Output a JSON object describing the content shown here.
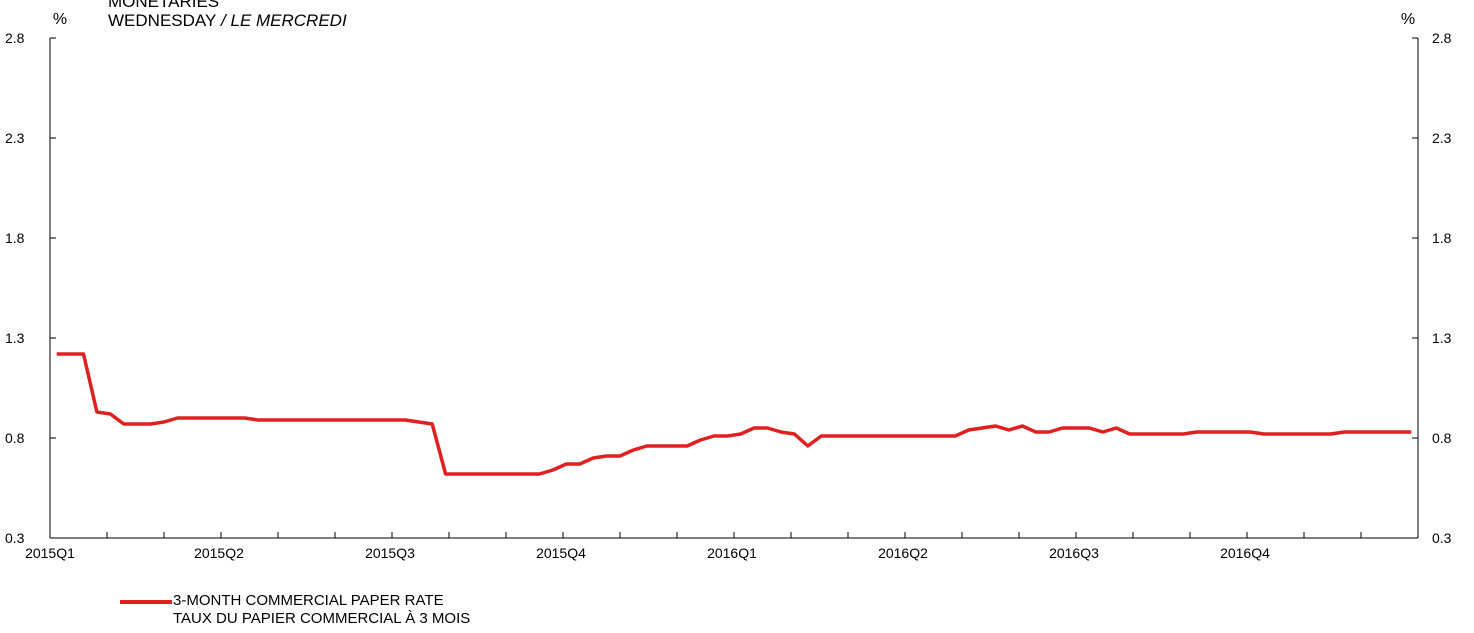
{
  "header": {
    "line_top": "MONETARIES",
    "title_en": "WEDNESDAY",
    "title_sep": " / ",
    "title_fr": "LE MERCREDI"
  },
  "chart_data": {
    "type": "line",
    "ylim": [
      0.3,
      2.8
    ],
    "yticks": [
      "0.3",
      "0.8",
      "1.3",
      "1.8",
      "2.3",
      "2.8"
    ],
    "y_unit_left": "%",
    "y_unit_right": "%",
    "x_tick_labels": [
      "2015Q1",
      "2015Q2",
      "2015Q3",
      "2015Q4",
      "2016Q1",
      "2016Q2",
      "2016Q3",
      "2016Q4"
    ],
    "n_weeks": 102,
    "grid": false,
    "legend_position": "bottom-left",
    "color": "#e02020",
    "series": [
      {
        "name": "3-MONTH COMMERCIAL PAPER RATE",
        "name_fr": "TAUX DU PAPIER COMMERCIAL À 3 MOIS",
        "values": [
          1.22,
          1.22,
          1.22,
          0.93,
          0.92,
          0.87,
          0.87,
          0.87,
          0.88,
          0.9,
          0.9,
          0.9,
          0.9,
          0.9,
          0.9,
          0.89,
          0.89,
          0.89,
          0.89,
          0.89,
          0.89,
          0.89,
          0.89,
          0.89,
          0.89,
          0.89,
          0.89,
          0.88,
          0.87,
          0.62,
          0.62,
          0.62,
          0.62,
          0.62,
          0.62,
          0.62,
          0.62,
          0.64,
          0.67,
          0.67,
          0.7,
          0.71,
          0.71,
          0.74,
          0.76,
          0.76,
          0.76,
          0.76,
          0.79,
          0.81,
          0.81,
          0.82,
          0.85,
          0.85,
          0.83,
          0.82,
          0.76,
          0.81,
          0.81,
          0.81,
          0.81,
          0.81,
          0.81,
          0.81,
          0.81,
          0.81,
          0.81,
          0.81,
          0.84,
          0.85,
          0.86,
          0.84,
          0.86,
          0.83,
          0.83,
          0.85,
          0.85,
          0.85,
          0.83,
          0.85,
          0.82,
          0.82,
          0.82,
          0.82,
          0.82,
          0.83,
          0.83,
          0.83,
          0.83,
          0.83,
          0.82,
          0.82,
          0.82,
          0.82,
          0.82,
          0.82,
          0.83,
          0.83,
          0.83,
          0.83,
          0.83,
          0.83
        ]
      }
    ]
  }
}
